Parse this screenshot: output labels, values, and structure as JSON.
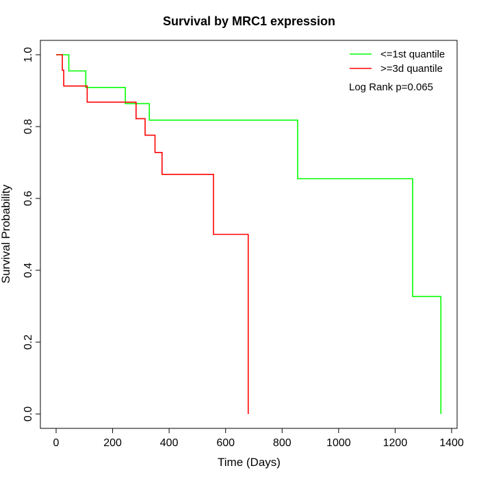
{
  "chart_data": {
    "type": "line",
    "title": "Survival by MRC1 expression",
    "xlabel": "Time (Days)",
    "ylabel": "Survival Probability",
    "xlim": [
      0,
      1400
    ],
    "ylim": [
      0,
      1
    ],
    "xticks": [
      0,
      200,
      400,
      600,
      800,
      1000,
      1200,
      1400
    ],
    "yticks": [
      0.0,
      0.2,
      0.4,
      0.6,
      0.8,
      1.0
    ],
    "xtick_labels": [
      "0",
      "200",
      "400",
      "600",
      "800",
      "1000",
      "1200",
      "1400"
    ],
    "ytick_labels": [
      "0.0",
      "0.2",
      "0.4",
      "0.6",
      "0.8",
      "1.0"
    ],
    "grid": false,
    "legend_position": "top-right",
    "annotation": "Log Rank p=0.065",
    "series": [
      {
        "name": "<=1st quantile",
        "color": "#00ff00",
        "step": true,
        "x": [
          0,
          45,
          105,
          245,
          330,
          855,
          1262,
          1362
        ],
        "y": [
          1.0,
          0.955,
          0.909,
          0.864,
          0.818,
          0.655,
          0.327,
          0.0
        ]
      },
      {
        "name": ">=3d quantile",
        "color": "#ff0000",
        "step": true,
        "x": [
          0,
          22,
          27,
          110,
          283,
          315,
          350,
          375,
          557,
          680
        ],
        "y": [
          1.0,
          0.957,
          0.913,
          0.868,
          0.822,
          0.776,
          0.728,
          0.667,
          0.5,
          0.0
        ]
      }
    ]
  }
}
